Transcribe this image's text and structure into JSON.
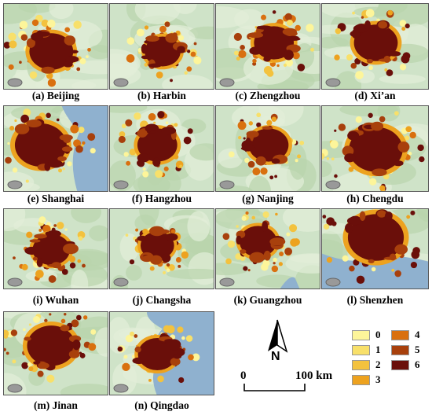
{
  "panels": [
    {
      "label": "(a) Beijing"
    },
    {
      "label": "(b) Harbin"
    },
    {
      "label": "(c) Zhengzhou"
    },
    {
      "label": "(d) Xi’an"
    },
    {
      "label": "(e) Shanghai"
    },
    {
      "label": "(f) Hangzhou"
    },
    {
      "label": "(g) Nanjing"
    },
    {
      "label": "(h) Chengdu"
    },
    {
      "label": "(i) Wuhan"
    },
    {
      "label": "(j) Changsha"
    },
    {
      "label": "(k) Guangzhou"
    },
    {
      "label": "(l) Shenzhen"
    },
    {
      "label": "(m) Jinan"
    },
    {
      "label": "(n) Qingdao"
    }
  ],
  "legend": [
    {
      "label": "0",
      "color": "#fdf59a"
    },
    {
      "label": "1",
      "color": "#f8e06a"
    },
    {
      "label": "2",
      "color": "#f3c23e"
    },
    {
      "label": "3",
      "color": "#eda21f"
    },
    {
      "label": "4",
      "color": "#d9700f"
    },
    {
      "label": "5",
      "color": "#a8400c"
    },
    {
      "label": "6",
      "color": "#6a0f0a"
    }
  ],
  "north_arrow": {
    "label": "N"
  },
  "scale_bar": {
    "start": "0",
    "end": "100 km"
  },
  "colors": {
    "terrain": "#cfe3c8",
    "water": "#8fb1cf",
    "urban_core": "#6a0f0a"
  }
}
